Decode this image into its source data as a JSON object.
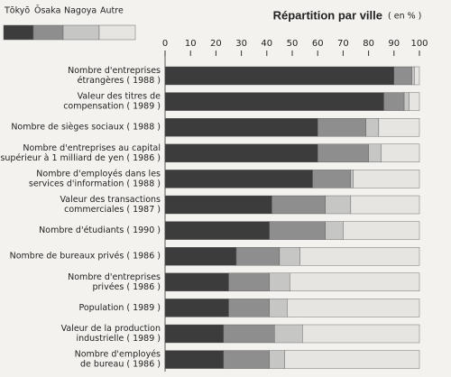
{
  "chart_data": {
    "type": "stacked-bar-horizontal",
    "title": "Répartition par ville",
    "unit_label": "( en % )",
    "categories": [
      [
        "Nombre d'entreprises",
        "étrangères ( 1988 )"
      ],
      [
        "Valeur des titres de",
        "compensation ( 1989 )"
      ],
      [
        "Nombre de sièges sociaux ( 1988 )"
      ],
      [
        "Nombre d'entreprises au capital",
        "supérieur à 1 milliard de yen ( 1986 )"
      ],
      [
        "Nombre d'employés dans les",
        "services d'information ( 1988 )"
      ],
      [
        "Valeur des transactions",
        "commerciales ( 1987 )"
      ],
      [
        "Nombre d'étudiants ( 1990 )"
      ],
      [
        "Nombre de bureaux privés ( 1986 )"
      ],
      [
        "Nombre d'entreprises",
        "privées ( 1986 )"
      ],
      [
        "Population ( 1989 )"
      ],
      [
        "Valeur de la production",
        "industrielle ( 1989 )"
      ],
      [
        "Nombre d'employés",
        "de bureau ( 1986 )"
      ]
    ],
    "series": [
      {
        "name": "Tōkyō",
        "color": "#3c3c3c",
        "values": [
          90,
          86,
          60,
          60,
          58,
          42,
          41,
          28,
          25,
          25,
          23,
          23
        ]
      },
      {
        "name": "Ōsaka",
        "color": "#8e8e8e",
        "values": [
          7,
          8,
          19,
          20,
          15,
          21,
          22,
          17,
          16,
          16,
          20,
          18
        ]
      },
      {
        "name": "Nagoya",
        "color": "#c6c6c4",
        "values": [
          1,
          2,
          5,
          5,
          1,
          10,
          7,
          8,
          8,
          7,
          11,
          6
        ]
      },
      {
        "name": "Autre",
        "color": "#e6e5e1",
        "values": [
          2,
          4,
          16,
          15,
          26,
          27,
          30,
          47,
          51,
          52,
          46,
          53
        ]
      }
    ],
    "xlim": [
      0,
      100
    ],
    "xticks": [
      0,
      10,
      20,
      30,
      40,
      50,
      60,
      70,
      80,
      90,
      100
    ]
  }
}
